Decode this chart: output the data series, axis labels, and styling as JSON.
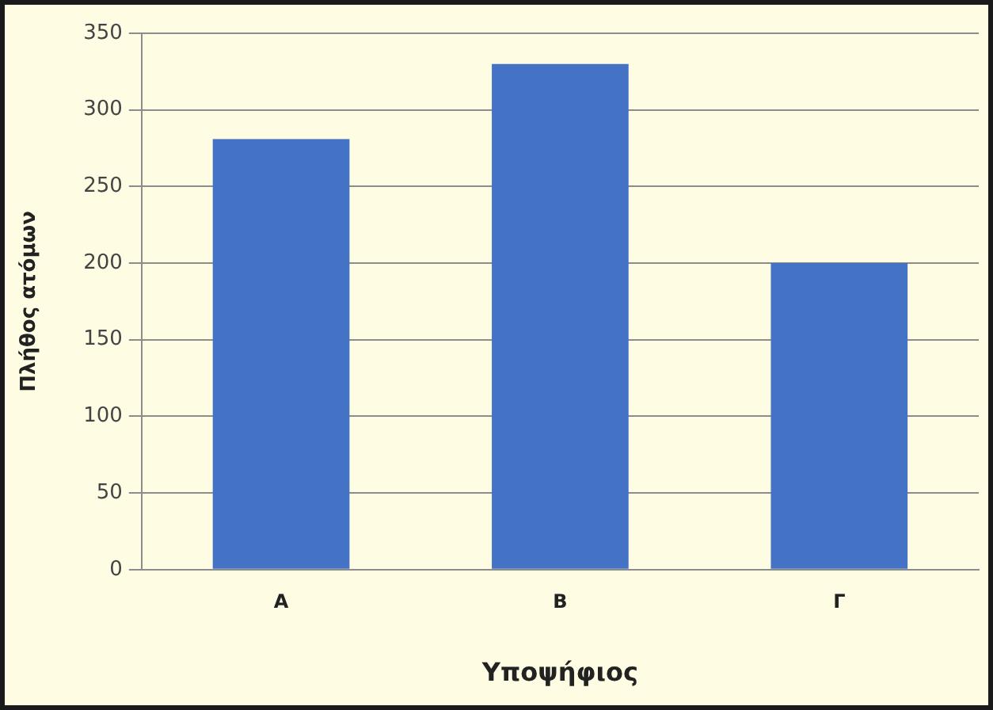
{
  "chart_data": {
    "type": "bar",
    "xlabel": "Υποψήφιος",
    "ylabel": "Πλήθος ατόμων",
    "categories": [
      "Α",
      "Β",
      "Γ"
    ],
    "values": [
      281,
      330,
      200
    ],
    "color": "#4472c4",
    "ylim": [
      0,
      350
    ],
    "yticks": [
      0,
      50,
      100,
      150,
      200,
      250,
      300,
      350
    ],
    "grid": "y"
  }
}
